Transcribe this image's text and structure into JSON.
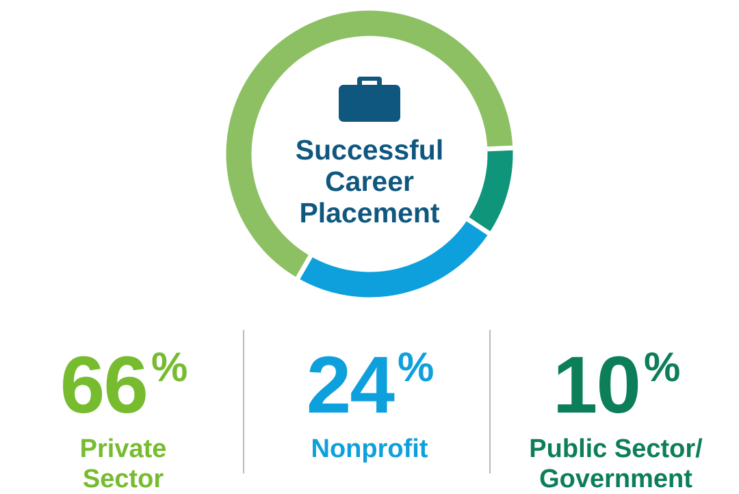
{
  "chart_data": {
    "type": "donut",
    "title": "Successful Career Placement",
    "categories": [
      "Private Sector",
      "Nonprofit",
      "Public Sector/ Government"
    ],
    "values": [
      66,
      24,
      10
    ],
    "value_labels": [
      "66%",
      "24%",
      "10%"
    ],
    "colors": [
      "#8dc063",
      "#0ea0dc",
      "#0e957a"
    ],
    "label_colors": [
      "#77bb2f",
      "#0ea0dc",
      "#0c7e5a"
    ]
  }
}
